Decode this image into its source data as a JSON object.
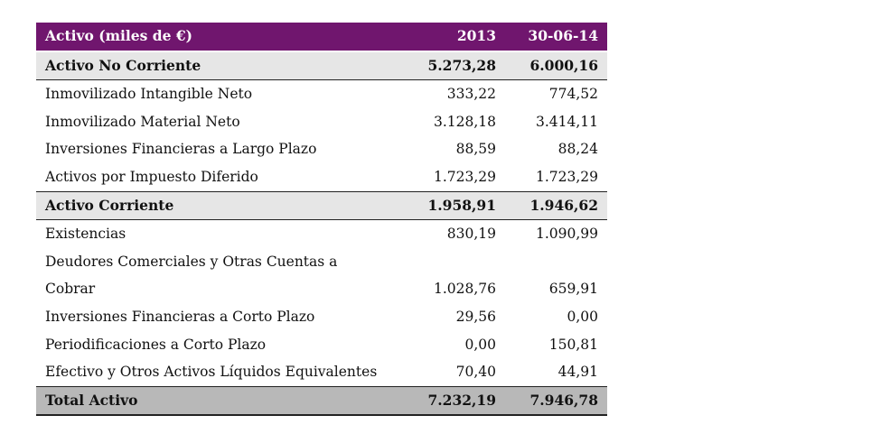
{
  "table": {
    "header": {
      "label": "Activo (miles de €)",
      "col1": "2013",
      "col2": "30-06-14"
    },
    "rows": [
      {
        "label": "Activo No Corriente",
        "v1": "5.273,28",
        "v2": "6.000,16",
        "type": "section"
      },
      {
        "label": "Inmovilizado Intangible Neto",
        "v1": "333,22",
        "v2": "774,52",
        "type": "item"
      },
      {
        "label": "Inmovilizado Material Neto",
        "v1": "3.128,18",
        "v2": "3.414,11",
        "type": "item"
      },
      {
        "label": "Inversiones Financieras a Largo Plazo",
        "v1": "88,59",
        "v2": "88,24",
        "type": "item"
      },
      {
        "label": "Activos por Impuesto Diferido",
        "v1": "1.723,29",
        "v2": "1.723,29",
        "type": "item"
      },
      {
        "label": "Activo Corriente",
        "v1": "1.958,91",
        "v2": "1.946,62",
        "type": "section"
      },
      {
        "label": "Existencias",
        "v1": "830,19",
        "v2": "1.090,99",
        "type": "item"
      },
      {
        "label": "Deudores Comerciales y Otras Cuentas a Cobrar",
        "v1": "1.028,76",
        "v2": "659,91",
        "type": "item"
      },
      {
        "label": "Inversiones Financieras a Corto Plazo",
        "v1": "29,56",
        "v2": "0,00",
        "type": "item"
      },
      {
        "label": "Periodificaciones a Corto Plazo",
        "v1": "0,00",
        "v2": "150,81",
        "type": "item"
      },
      {
        "label": "Efectivo y Otros Activos Líquidos Equivalentes",
        "v1": "70,40",
        "v2": "44,91",
        "type": "item"
      },
      {
        "label": "Total Activo",
        "v1": "7.232,19",
        "v2": "7.946,78",
        "type": "total"
      }
    ]
  }
}
